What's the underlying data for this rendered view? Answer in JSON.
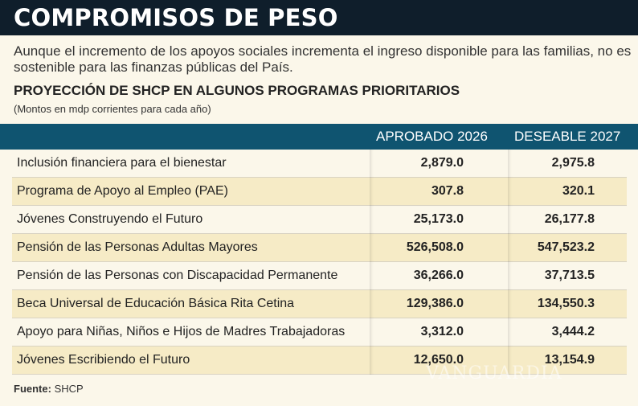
{
  "title": "COMPROMISOS DE PESO",
  "intro": "Aunque el incremento de los apoyos sociales incrementa el ingreso disponible para las familias, no es sostenible para las finanzas públicas del País.",
  "subtitle": "PROYECCIÓN DE SHCP EN ALGUNOS PROGRAMAS PRIORITARIOS",
  "note": "(Montos en mdp corrientes para cada año)",
  "colors": {
    "title_bar": "#0f1e2b",
    "header": "#0f5470",
    "background": "#fbf7ea",
    "alt_row": "#f6ebc6"
  },
  "chart_data": {
    "type": "table",
    "columns": [
      "",
      "APROBADO 2026",
      "DESEABLE 2027"
    ],
    "rows": [
      {
        "label": "Inclusión financiera para el bienestar",
        "aprobado_2026": "2,879.0",
        "deseable_2027": "2,975.8"
      },
      {
        "label": "Programa de Apoyo al Empleo (PAE)",
        "aprobado_2026": "307.8",
        "deseable_2027": "320.1"
      },
      {
        "label": "Jóvenes Construyendo el Futuro",
        "aprobado_2026": "25,173.0",
        "deseable_2027": "26,177.8"
      },
      {
        "label": "Pensión de las Personas Adultas Mayores",
        "aprobado_2026": "526,508.0",
        "deseable_2027": "547,523.2"
      },
      {
        "label": "Pensión de las Personas con Discapacidad Permanente",
        "aprobado_2026": "36,266.0",
        "deseable_2027": "37,713.5"
      },
      {
        "label": "Beca Universal de Educación Básica Rita Cetina",
        "aprobado_2026": "129,386.0",
        "deseable_2027": "134,550.3"
      },
      {
        "label": "Apoyo para Niñas, Niños e Hijos de Madres Trabajadoras",
        "aprobado_2026": "3,312.0",
        "deseable_2027": "3,444.2"
      },
      {
        "label": "Jóvenes Escribiendo el Futuro",
        "aprobado_2026": "12,650.0",
        "deseable_2027": "13,154.9"
      }
    ]
  },
  "source": {
    "label": "Fuente:",
    "value": "SHCP"
  },
  "watermark": "VANGUARDIA MX"
}
